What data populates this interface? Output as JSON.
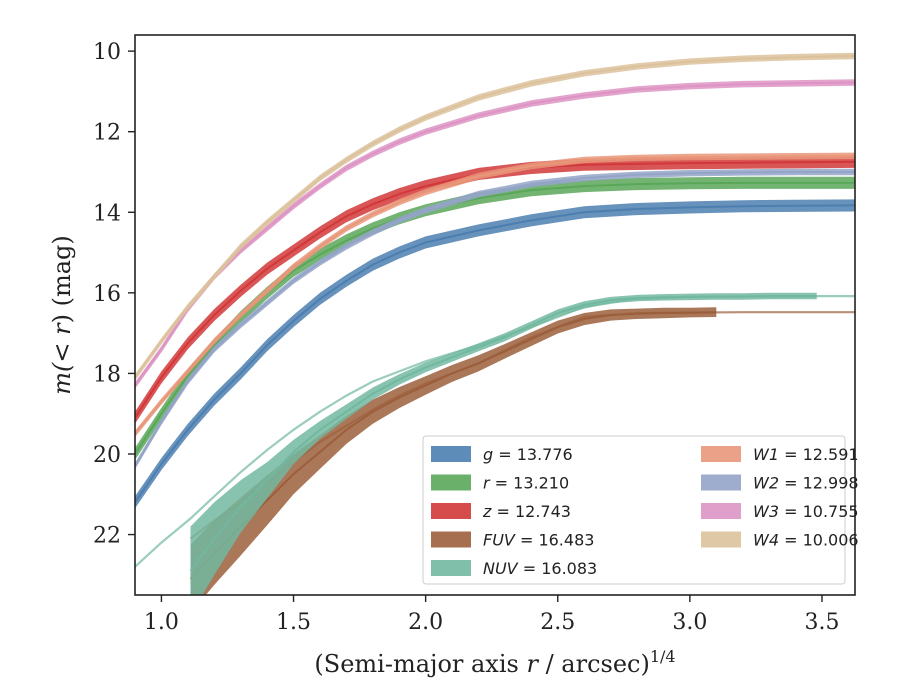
{
  "chart_data": {
    "type": "line",
    "title": "",
    "xlabel": {
      "prefix": "(Semi-major axis ",
      "var": "r",
      "suffix": " / arcsec)",
      "power": "1/4"
    },
    "ylabel": {
      "prefix": "m(",
      "middle": "< r",
      "suffix": ") (mag)"
    },
    "xlim": [
      0.9,
      3.625
    ],
    "ylim": [
      23.5,
      9.6
    ],
    "y_inverted": true,
    "grid": false,
    "x_ticks": [
      1.0,
      1.5,
      2.0,
      2.5,
      3.0,
      3.5
    ],
    "x_tick_labels": [
      "1.0",
      "1.5",
      "2.0",
      "2.5",
      "3.0",
      "3.5"
    ],
    "y_ticks": [
      10,
      12,
      14,
      16,
      18,
      20,
      22
    ],
    "y_tick_labels": [
      "10",
      "12",
      "14",
      "16",
      "18",
      "20",
      "22"
    ],
    "legend": {
      "placement": "lower-right",
      "columns": 2
    },
    "series": [
      {
        "band": "g",
        "value": "13.776",
        "color": "#4c7fb0",
        "x": [
          0.9,
          1.0,
          1.1,
          1.2,
          1.3,
          1.4,
          1.5,
          1.6,
          1.7,
          1.8,
          1.9,
          2.0,
          2.2,
          2.4,
          2.6,
          2.8,
          3.0,
          3.2,
          3.4,
          3.625
        ],
        "y": [
          21.2,
          20.25,
          19.4,
          18.65,
          18.0,
          17.3,
          16.7,
          16.15,
          15.7,
          15.3,
          15.0,
          14.75,
          14.45,
          14.2,
          14.0,
          13.92,
          13.88,
          13.85,
          13.84,
          13.83
        ],
        "band_width": 0.15
      },
      {
        "band": "r",
        "value": "13.210",
        "color": "#5aa75a",
        "x": [
          0.9,
          1.0,
          1.1,
          1.2,
          1.3,
          1.4,
          1.5,
          1.6,
          1.7,
          1.8,
          1.9,
          2.0,
          2.2,
          2.4,
          2.6,
          2.8,
          3.0,
          3.2,
          3.4,
          3.625
        ],
        "y": [
          20.0,
          19.0,
          18.05,
          17.3,
          16.6,
          16.0,
          15.45,
          15.05,
          14.7,
          14.4,
          14.15,
          13.95,
          13.65,
          13.45,
          13.35,
          13.3,
          13.28,
          13.27,
          13.27,
          13.27
        ],
        "band_width": 0.15
      },
      {
        "band": "z",
        "value": "12.743",
        "color": "#d2383a",
        "x": [
          0.9,
          1.0,
          1.1,
          1.2,
          1.3,
          1.4,
          1.5,
          1.6,
          1.7,
          1.8,
          1.9,
          2.0,
          2.2,
          2.4,
          2.6,
          2.8,
          3.0,
          3.2,
          3.4,
          3.625
        ],
        "y": [
          19.1,
          18.1,
          17.25,
          16.55,
          15.95,
          15.4,
          14.95,
          14.5,
          14.1,
          13.8,
          13.55,
          13.35,
          13.05,
          12.9,
          12.82,
          12.8,
          12.78,
          12.77,
          12.76,
          12.75
        ],
        "band_width": 0.15
      },
      {
        "band": "W1",
        "value": "12.591",
        "color": "#e9977a",
        "x": [
          0.9,
          1.0,
          1.1,
          1.2,
          1.3,
          1.4,
          1.5,
          1.6,
          1.7,
          1.8,
          1.9,
          2.0,
          2.2,
          2.4,
          2.6,
          2.8,
          3.0,
          3.2,
          3.4,
          3.625
        ],
        "y": [
          19.5,
          18.7,
          17.95,
          17.2,
          16.55,
          15.95,
          15.35,
          14.85,
          14.4,
          14.05,
          13.75,
          13.5,
          13.1,
          12.85,
          12.7,
          12.65,
          12.63,
          12.62,
          12.61,
          12.6
        ],
        "band_width": 0.08
      },
      {
        "band": "W2",
        "value": "12.998",
        "color": "#94a4c8",
        "x": [
          0.9,
          1.0,
          1.1,
          1.2,
          1.3,
          1.4,
          1.5,
          1.6,
          1.7,
          1.8,
          1.9,
          2.0,
          2.2,
          2.4,
          2.6,
          2.8,
          3.0,
          3.2,
          3.4,
          3.625
        ],
        "y": [
          20.3,
          19.2,
          18.2,
          17.4,
          16.8,
          16.25,
          15.7,
          15.25,
          14.85,
          14.5,
          14.2,
          13.95,
          13.55,
          13.3,
          13.15,
          13.07,
          13.03,
          13.01,
          13.0,
          13.0
        ],
        "band_width": 0.08
      },
      {
        "band": "W3",
        "value": "10.755",
        "color": "#dd94c4",
        "x": [
          0.9,
          1.0,
          1.1,
          1.2,
          1.3,
          1.4,
          1.5,
          1.6,
          1.7,
          1.8,
          1.9,
          2.0,
          2.2,
          2.4,
          2.6,
          2.8,
          3.0,
          3.2,
          3.4,
          3.625
        ],
        "y": [
          18.3,
          17.4,
          16.4,
          15.6,
          14.95,
          14.4,
          13.85,
          13.35,
          12.9,
          12.55,
          12.25,
          12.0,
          11.6,
          11.3,
          11.1,
          10.95,
          10.87,
          10.82,
          10.8,
          10.78
        ],
        "band_width": 0.08
      },
      {
        "band": "W4",
        "value": "10.006",
        "color": "#dcc29c",
        "x": [
          0.9,
          1.0,
          1.1,
          1.2,
          1.3,
          1.4,
          1.5,
          1.6,
          1.7,
          1.8,
          1.9,
          2.0,
          2.2,
          2.4,
          2.6,
          2.8,
          3.0,
          3.2,
          3.4,
          3.625
        ],
        "y": [
          18.1,
          17.2,
          16.35,
          15.6,
          14.85,
          14.25,
          13.7,
          13.15,
          12.7,
          12.3,
          11.95,
          11.65,
          11.15,
          10.8,
          10.55,
          10.38,
          10.26,
          10.19,
          10.15,
          10.12
        ],
        "band_width": 0.08
      },
      {
        "band": "FUV",
        "value": "16.483",
        "color": "#9c5f3c",
        "x": [
          1.11,
          1.2,
          1.3,
          1.4,
          1.5,
          1.6,
          1.7,
          1.8,
          1.9,
          2.0,
          2.1,
          2.2,
          2.3,
          2.4,
          2.5,
          2.6,
          2.7,
          2.8,
          2.9,
          3.0,
          3.1
        ],
        "y": [
          23.1,
          22.45,
          21.8,
          21.15,
          20.5,
          19.95,
          19.4,
          18.95,
          18.6,
          18.3,
          18.0,
          17.75,
          17.45,
          17.15,
          16.85,
          16.65,
          16.55,
          16.52,
          16.5,
          16.49,
          16.48
        ],
        "band_width": [
          0.85,
          0.8,
          0.72,
          0.62,
          0.5,
          0.42,
          0.35,
          0.3,
          0.26,
          0.23,
          0.21,
          0.2,
          0.18,
          0.17,
          0.16,
          0.15,
          0.14,
          0.13,
          0.13,
          0.12,
          0.12
        ],
        "faint_x": [
          1.11,
          1.2,
          1.3,
          1.4,
          1.5,
          1.6,
          1.7,
          1.8,
          1.9,
          2.0,
          2.2,
          2.4,
          2.6,
          2.8,
          3.0,
          3.2,
          3.4,
          3.625
        ],
        "faint_y": [
          22.1,
          21.65,
          21.2,
          20.7,
          20.2,
          19.7,
          19.3,
          18.9,
          18.55,
          18.25,
          17.75,
          17.1,
          16.6,
          16.5,
          16.49,
          16.48,
          16.48,
          16.48
        ]
      },
      {
        "band": "NUV",
        "value": "16.083",
        "color": "#72b8a0",
        "x": [
          1.11,
          1.2,
          1.3,
          1.4,
          1.5,
          1.6,
          1.7,
          1.8,
          1.9,
          2.0,
          2.1,
          2.2,
          2.3,
          2.4,
          2.5,
          2.6,
          2.7,
          2.8,
          2.9,
          3.0,
          3.1,
          3.2,
          3.3,
          3.4,
          3.48
        ],
        "y": [
          22.9,
          22.1,
          21.3,
          20.65,
          19.95,
          19.4,
          18.95,
          18.5,
          18.15,
          17.85,
          17.6,
          17.35,
          17.1,
          16.8,
          16.5,
          16.3,
          16.18,
          16.13,
          16.11,
          16.1,
          16.09,
          16.09,
          16.08,
          16.08,
          16.08
        ],
        "band_width": [
          1.1,
          0.9,
          0.65,
          0.45,
          0.3,
          0.22,
          0.18,
          0.15,
          0.13,
          0.12,
          0.11,
          0.1,
          0.1,
          0.09,
          0.09,
          0.09,
          0.08,
          0.08,
          0.08,
          0.08,
          0.08,
          0.08,
          0.08,
          0.08,
          0.08
        ],
        "faint_x": [
          0.9,
          1.0,
          1.11,
          1.2,
          1.3,
          1.4,
          1.5,
          1.6,
          1.7,
          1.8,
          1.9,
          2.0,
          2.2,
          2.4,
          2.6,
          2.8,
          3.0,
          3.2,
          3.4,
          3.625
        ],
        "faint_y": [
          22.8,
          22.2,
          21.6,
          21.05,
          20.45,
          19.9,
          19.4,
          18.95,
          18.55,
          18.2,
          17.95,
          17.7,
          17.3,
          16.85,
          16.35,
          16.15,
          16.1,
          16.09,
          16.08,
          16.08
        ]
      }
    ],
    "legend_entries": [
      {
        "band": "g",
        "eq": " = 13.776",
        "color": "#4c7fb0"
      },
      {
        "band": "r",
        "eq": " = 13.210",
        "color": "#5aa75a"
      },
      {
        "band": "z",
        "eq": " = 12.743",
        "color": "#d2383a"
      },
      {
        "band": "FUV",
        "eq": " = 16.483",
        "color": "#9c5f3c"
      },
      {
        "band": "NUV",
        "eq": " = 16.083",
        "color": "#72b8a0"
      },
      {
        "band": "W1",
        "eq": " = 12.591",
        "color": "#e9977a"
      },
      {
        "band": "W2",
        "eq": " = 12.998",
        "color": "#94a4c8"
      },
      {
        "band": "W3",
        "eq": " = 10.755",
        "color": "#dd94c4"
      },
      {
        "band": "W4",
        "eq": " = 10.006",
        "color": "#dcc29c"
      }
    ]
  }
}
